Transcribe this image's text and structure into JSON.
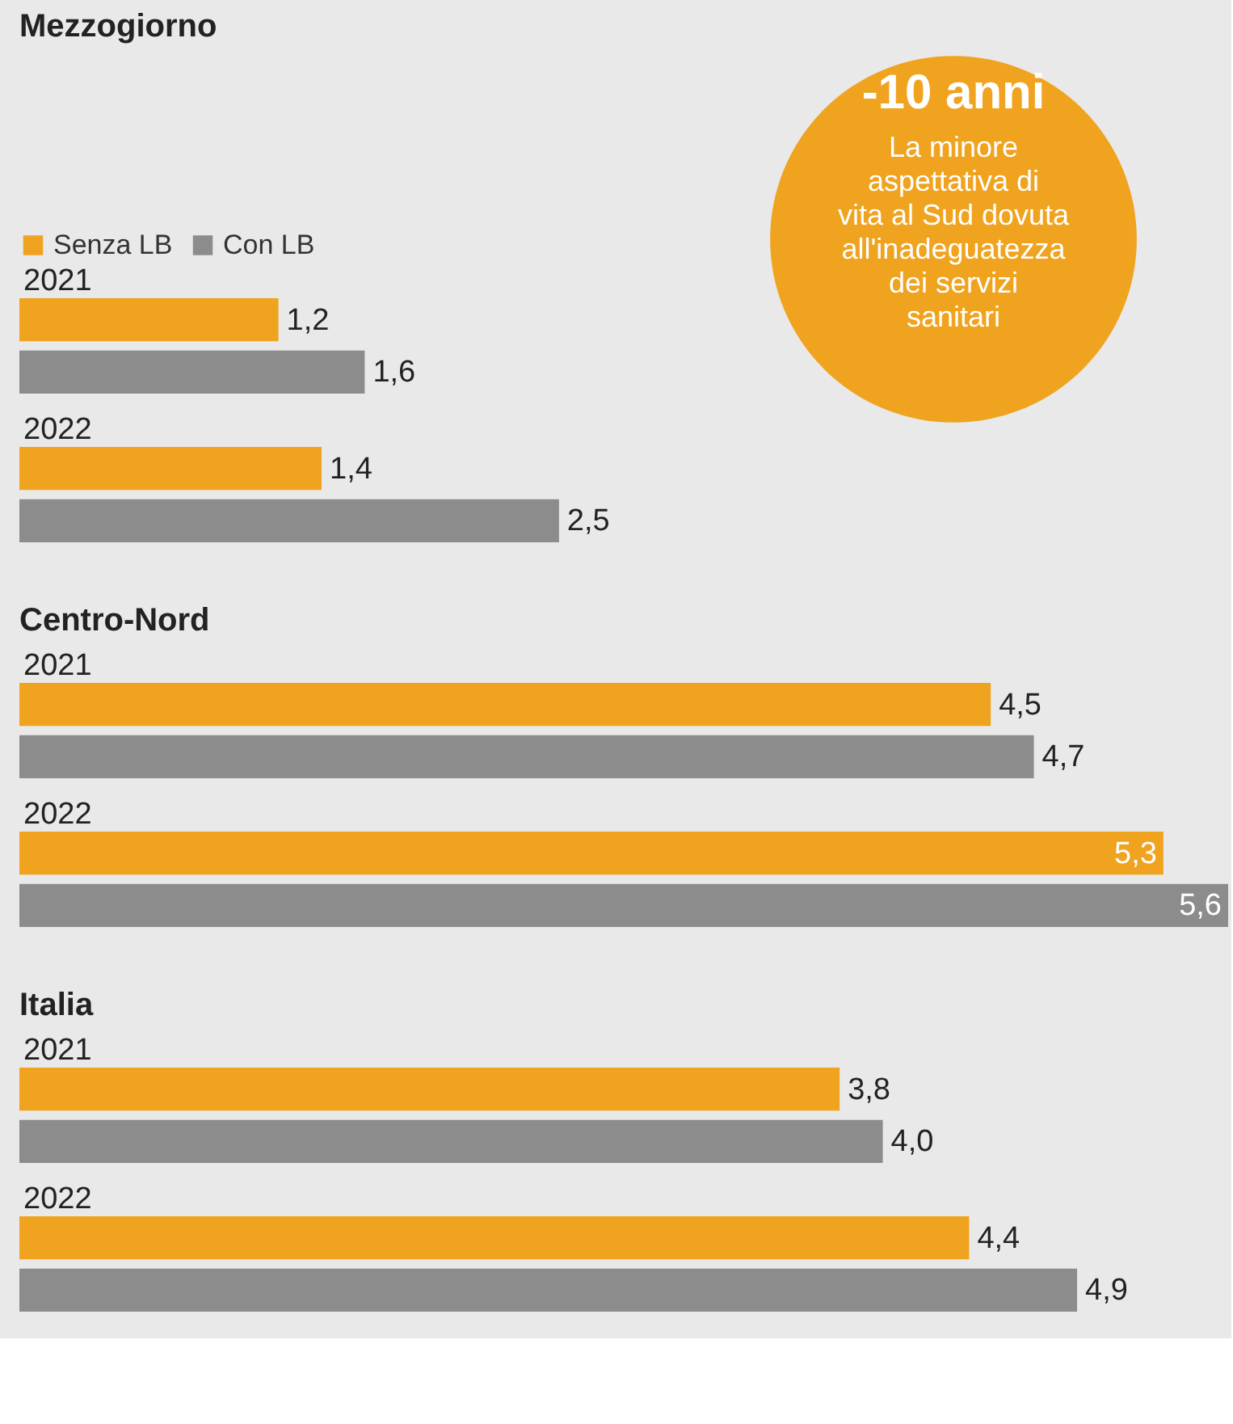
{
  "chart_data": [
    {
      "type": "bar",
      "orientation": "horizontal",
      "title": "Mezzogiorno",
      "categories": [
        "2021",
        "2022"
      ],
      "tick_labels": "y",
      "legend": "top left",
      "annotations": [
        "-10 anni",
        "La minore aspettativa di vita al Sud dovuta all'inadeguatezza dei servizi sanitari"
      ],
      "series": [
        {
          "name": "Senza LB",
          "color": "#f0a31e",
          "values": [
            1.2,
            1.4
          ],
          "value_labels": [
            "1,2",
            "1,4"
          ]
        },
        {
          "name": "Con LB",
          "color": "#8c8c8c",
          "values": [
            1.6,
            2.5
          ],
          "value_labels": [
            "1,6",
            "2,5"
          ]
        }
      ]
    },
    {
      "type": "bar",
      "orientation": "horizontal",
      "title": "Centro-Nord",
      "categories": [
        "2021",
        "2022"
      ],
      "tick_labels": "y",
      "series": [
        {
          "color": "#f0a31e",
          "values": [
            4.5,
            5.3
          ],
          "value_labels": [
            "4,5",
            "5,3"
          ]
        },
        {
          "color": "#8c8c8c",
          "values": [
            4.7,
            5.6
          ],
          "value_labels": [
            "4,7",
            "5,6"
          ]
        }
      ]
    },
    {
      "type": "bar",
      "orientation": "horizontal",
      "title": "Italia",
      "categories": [
        "2021",
        "2022"
      ],
      "tick_labels": "y",
      "series": [
        {
          "color": "#f0a31e",
          "values": [
            3.8,
            4.4
          ],
          "value_labels": [
            "3,8",
            "4,4"
          ]
        },
        {
          "color": "#8c8c8c",
          "values": [
            4.0,
            4.9
          ],
          "value_labels": [
            "4,0",
            "4,9"
          ]
        }
      ]
    }
  ]
}
